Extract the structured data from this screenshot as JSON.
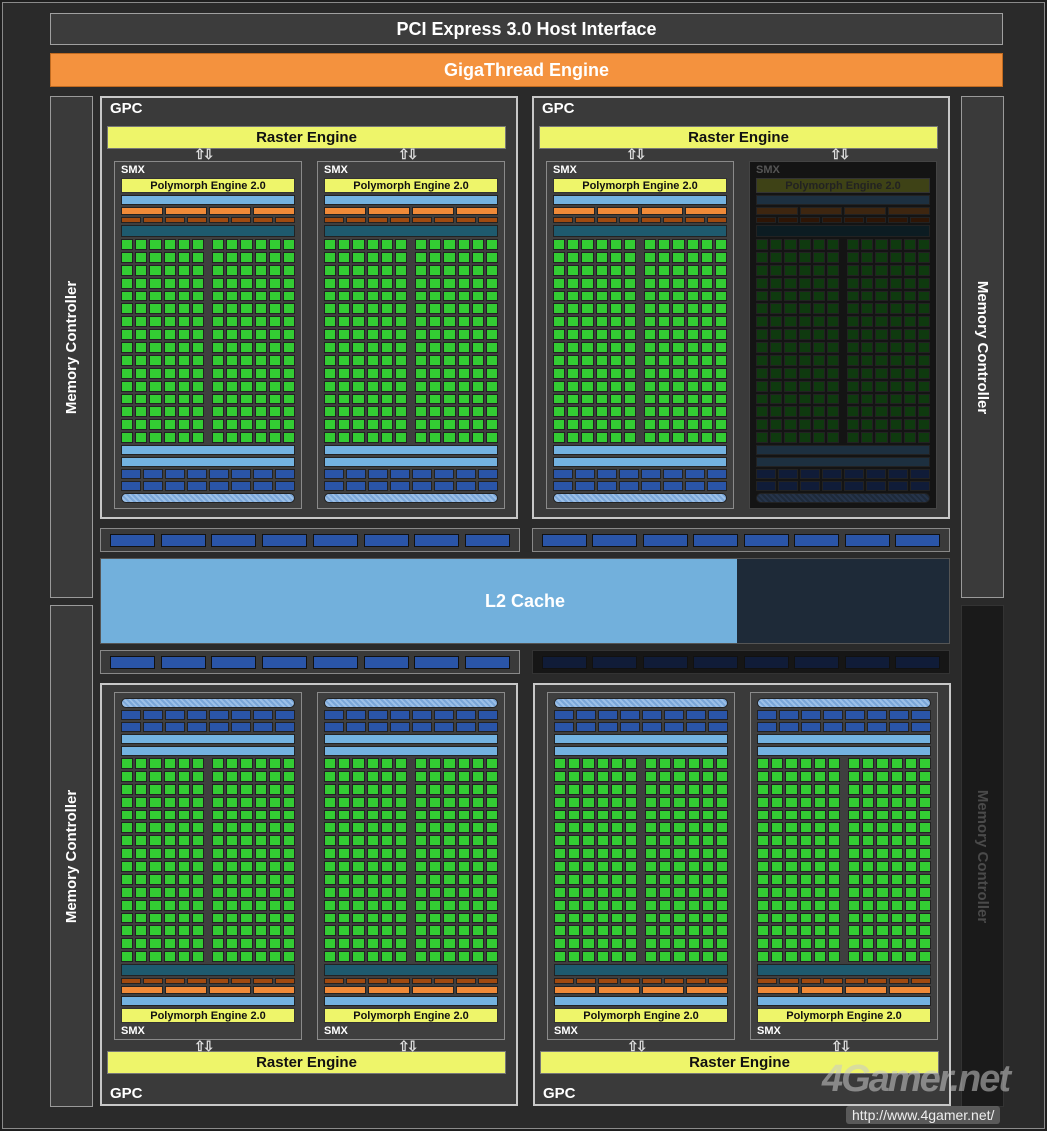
{
  "pcie": "PCI Express 3.0 Host Interface",
  "gigathread": "GigaThread Engine",
  "memory_controller": "Memory Controller",
  "gpc_label": "GPC",
  "raster_engine": "Raster Engine",
  "smx_label": "SMX",
  "polymorph": "Polymorph Engine 2.0",
  "l2": "L2 Cache",
  "l2_enabled_fraction": 0.75,
  "watermark": {
    "logo": "4Gamer.net",
    "url": "http://www.4gamer.net/"
  },
  "colors": {
    "orange": "#f4923e",
    "yellow": "#eef56a",
    "green": "#33cc33",
    "l2": "#72b0dc"
  },
  "disabled_units": [
    "GPC top-right SMX 2",
    "L2 right quarter",
    "lower-right crossbar",
    "lower-right memory controller"
  ]
}
